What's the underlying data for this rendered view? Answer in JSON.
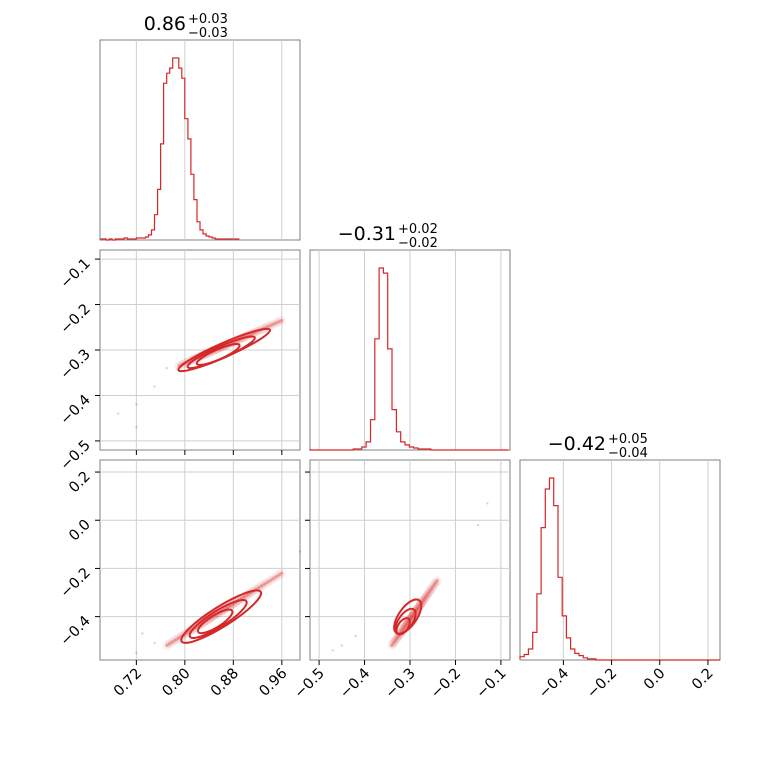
{
  "chart_data": {
    "type": "corner",
    "style": {
      "color": "#d62728",
      "grid": true
    },
    "panels": [
      {
        "id": "hist-0",
        "type": "histogram",
        "title": {
          "main": "0.86",
          "plus": "+0.03",
          "minus": "−0.03"
        },
        "xlim": [
          0.66,
          0.99
        ],
        "y_ticks_shown": false,
        "x_ticks_shown": false,
        "grid_x": [
          0.72,
          0.8,
          0.88,
          0.96
        ],
        "bins": {
          "start": 0.66,
          "width": 0.005,
          "counts": [
            1,
            1,
            0,
            1,
            0,
            1,
            1,
            1,
            2,
            1,
            1,
            1,
            2,
            2,
            2,
            3,
            5,
            10,
            25,
            50,
            95,
            155,
            165,
            170,
            180,
            180,
            170,
            160,
            120,
            100,
            65,
            40,
            18,
            10,
            6,
            4,
            3,
            2,
            1,
            1,
            1,
            1,
            1,
            1,
            1,
            1
          ]
        }
      },
      {
        "id": "hist-1",
        "type": "histogram",
        "title": {
          "main": "−0.31",
          "plus": "+0.02",
          "minus": "−0.02"
        },
        "xlim": [
          -0.52,
          -0.08
        ],
        "y_ticks_shown": false,
        "x_ticks_shown": false,
        "grid_x": [
          -0.5,
          -0.4,
          -0.3,
          -0.2,
          -0.1
        ],
        "bins": {
          "start": -0.52,
          "width": 0.0095,
          "counts": [
            0,
            0,
            0,
            0,
            0,
            0,
            0,
            0,
            0,
            0,
            1,
            1,
            3,
            8,
            30,
            110,
            180,
            175,
            100,
            40,
            18,
            8,
            5,
            3,
            2,
            1,
            1,
            1,
            0,
            0,
            0,
            0,
            0,
            0,
            0,
            0,
            0,
            0,
            0,
            0,
            0,
            0,
            0,
            0,
            0,
            0
          ]
        }
      },
      {
        "id": "hist-2",
        "type": "histogram",
        "title": {
          "main": "−0.42",
          "plus": "+0.05",
          "minus": "−0.04"
        },
        "xlim": [
          -0.58,
          0.25
        ],
        "y_ticks_shown": false,
        "x_ticks_shown": true,
        "x_tick_labels": [
          "−0.4",
          "−0.2",
          "0.0",
          "0.2"
        ],
        "x_ticks": [
          -0.4,
          -0.2,
          0.0,
          0.2
        ],
        "grid_x": [
          -0.4,
          -0.2,
          0.0,
          0.2
        ],
        "bins": {
          "start": -0.58,
          "width": 0.0175,
          "counts": [
            3,
            5,
            10,
            25,
            60,
            120,
            155,
            165,
            140,
            75,
            40,
            20,
            10,
            6,
            4,
            2,
            1,
            1,
            0,
            0,
            0,
            0,
            0,
            0,
            0,
            0,
            0,
            0,
            0,
            0,
            0,
            0,
            0,
            0,
            0,
            0,
            0,
            0,
            0,
            0,
            0,
            0,
            0,
            0,
            0,
            0,
            0,
            0
          ]
        }
      },
      {
        "id": "scatter-1-0",
        "type": "density",
        "xlim": [
          0.66,
          0.99
        ],
        "ylim": [
          -0.52,
          -0.08
        ],
        "x_ticks": [
          0.72,
          0.8,
          0.88,
          0.96
        ],
        "y_ticks": [
          -0.1,
          -0.2,
          -0.3,
          -0.4,
          -0.5
        ],
        "y_tick_labels": [
          "−0.1",
          "−0.2",
          "−0.3",
          "−0.4",
          "−0.5"
        ],
        "corr_line": {
          "from": [
            0.79,
            -0.335
          ],
          "to": [
            0.96,
            -0.235
          ]
        },
        "contours": [
          {
            "cx": 0.855,
            "cy": -0.31,
            "rx": 0.035,
            "ry": 0.012
          },
          {
            "cx": 0.86,
            "cy": -0.305,
            "rx": 0.055,
            "ry": 0.016
          },
          {
            "cx": 0.865,
            "cy": -0.3,
            "rx": 0.075,
            "ry": 0.02
          }
        ],
        "outliers": [
          [
            0.69,
            -0.44
          ],
          [
            0.72,
            -0.47
          ],
          [
            0.75,
            -0.38
          ],
          [
            0.77,
            -0.34
          ],
          [
            0.72,
            -0.42
          ]
        ]
      },
      {
        "id": "scatter-2-0",
        "type": "density",
        "xlim": [
          0.66,
          0.99
        ],
        "ylim": [
          -0.58,
          0.25
        ],
        "x_ticks": [
          0.72,
          0.8,
          0.88,
          0.96
        ],
        "x_tick_labels": [
          "0.72",
          "0.80",
          "0.88",
          "0.96"
        ],
        "y_ticks": [
          0.2,
          0.0,
          -0.2,
          -0.4
        ],
        "y_tick_labels": [
          "0.2",
          "0.0",
          "−0.2",
          "−0.4"
        ],
        "corr_line": {
          "from": [
            0.77,
            -0.52
          ],
          "to": [
            0.96,
            -0.22
          ]
        },
        "contours": [
          {
            "cx": 0.85,
            "cy": -0.42,
            "rx": 0.03,
            "ry": 0.03
          },
          {
            "cx": 0.855,
            "cy": -0.41,
            "rx": 0.05,
            "ry": 0.045
          },
          {
            "cx": 0.86,
            "cy": -0.4,
            "rx": 0.07,
            "ry": 0.06
          }
        ],
        "outliers": [
          [
            0.72,
            -0.55
          ],
          [
            0.75,
            -0.51
          ],
          [
            0.99,
            -0.13
          ],
          [
            0.73,
            -0.47
          ]
        ]
      },
      {
        "id": "scatter-2-1",
        "type": "density",
        "xlim": [
          -0.52,
          -0.08
        ],
        "ylim": [
          -0.58,
          0.25
        ],
        "x_ticks": [
          -0.5,
          -0.4,
          -0.3,
          -0.2,
          -0.1
        ],
        "x_tick_labels": [
          "−0.5",
          "−0.4",
          "−0.3",
          "−0.2",
          "−0.1"
        ],
        "y_ticks": [
          0.2,
          0.0,
          -0.2,
          -0.4
        ],
        "corr_line": {
          "from": [
            -0.34,
            -0.52
          ],
          "to": [
            -0.24,
            -0.25
          ]
        },
        "contours": [
          {
            "cx": -0.315,
            "cy": -0.44,
            "rx": 0.012,
            "ry": 0.035
          },
          {
            "cx": -0.31,
            "cy": -0.42,
            "rx": 0.02,
            "ry": 0.055
          },
          {
            "cx": -0.305,
            "cy": -0.4,
            "rx": 0.028,
            "ry": 0.075
          }
        ],
        "outliers": [
          [
            -0.45,
            -0.52
          ],
          [
            -0.42,
            -0.48
          ],
          [
            -0.13,
            0.07
          ],
          [
            -0.15,
            -0.02
          ],
          [
            -0.47,
            -0.54
          ]
        ]
      }
    ]
  }
}
